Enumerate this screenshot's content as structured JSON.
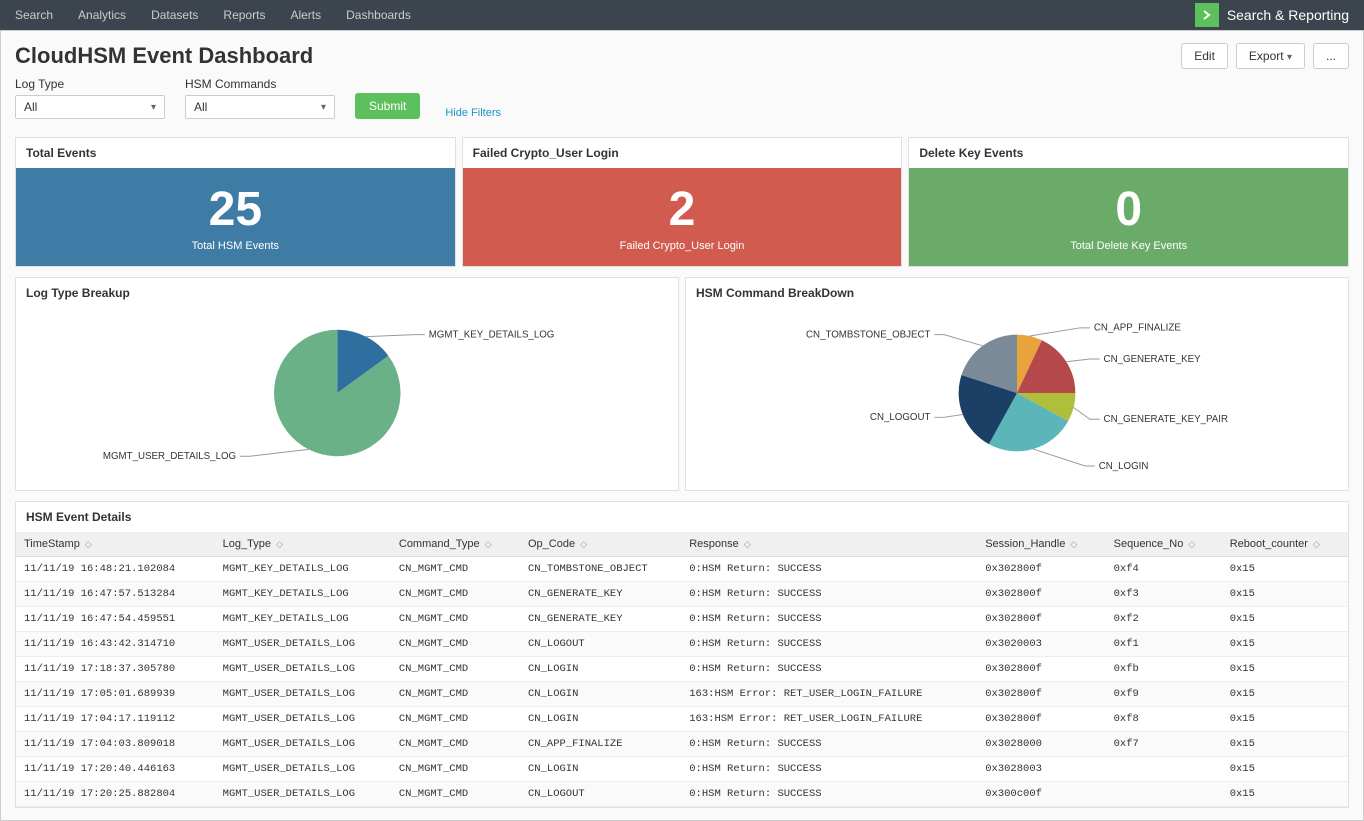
{
  "nav": {
    "items": [
      "Search",
      "Analytics",
      "Datasets",
      "Reports",
      "Alerts",
      "Dashboards"
    ],
    "brand": "Search & Reporting"
  },
  "page": {
    "title": "CloudHSM Event Dashboard",
    "actions": {
      "edit": "Edit",
      "export": "Export",
      "more": "..."
    }
  },
  "filters": {
    "log_type": {
      "label": "Log Type",
      "value": "All"
    },
    "hsm_commands": {
      "label": "HSM Commands",
      "value": "All"
    },
    "submit": "Submit",
    "hide": "Hide Filters"
  },
  "summary_cards": [
    {
      "header": "Total Events",
      "value": "25",
      "subtitle": "Total HSM Events",
      "bg": "#3e7ca6"
    },
    {
      "header": "Failed Crypto_User Login",
      "value": "2",
      "subtitle": "Failed Crypto_User Login",
      "bg": "#d15b4f"
    },
    {
      "header": "Delete Key Events",
      "value": "0",
      "subtitle": "Total Delete Key Events",
      "bg": "#6aab6a"
    }
  ],
  "pie1": {
    "title": "Log Type Breakup",
    "slices": [
      {
        "label": "MGMT_KEY_DETAILS_LOG",
        "value": 15,
        "color": "#2f6f9f"
      },
      {
        "label": "MGMT_USER_DETAILS_LOG",
        "value": 85,
        "color": "#6ab187"
      }
    ]
  },
  "pie2": {
    "title": "HSM Command BreakDown",
    "slices": [
      {
        "label": "CN_APP_FINALIZE",
        "value": 7,
        "color": "#e8a33d"
      },
      {
        "label": "CN_GENERATE_KEY",
        "value": 18,
        "color": "#b4484a"
      },
      {
        "label": "CN_GENERATE_KEY_PAIR",
        "value": 8,
        "color": "#afbf3b"
      },
      {
        "label": "CN_LOGIN",
        "value": 25,
        "color": "#5bb5b9"
      },
      {
        "label": "CN_LOGOUT",
        "value": 22,
        "color": "#1c3f66"
      },
      {
        "label": "CN_TOMBSTONE_OBJECT",
        "value": 20,
        "color": "#7b8a99"
      }
    ]
  },
  "table": {
    "title": "HSM Event Details",
    "columns": [
      "TimeStamp",
      "Log_Type",
      "Command_Type",
      "Op_Code",
      "Response",
      "Session_Handle",
      "Sequence_No",
      "Reboot_counter"
    ],
    "rows": [
      [
        "11/11/19 16:48:21.102084",
        "MGMT_KEY_DETAILS_LOG",
        "CN_MGMT_CMD",
        "CN_TOMBSTONE_OBJECT",
        "0:HSM Return: SUCCESS",
        "0x302800f",
        "0xf4",
        "0x15"
      ],
      [
        "11/11/19 16:47:57.513284",
        "MGMT_KEY_DETAILS_LOG",
        "CN_MGMT_CMD",
        "CN_GENERATE_KEY",
        "0:HSM Return: SUCCESS",
        "0x302800f",
        "0xf3",
        "0x15"
      ],
      [
        "11/11/19 16:47:54.459551",
        "MGMT_KEY_DETAILS_LOG",
        "CN_MGMT_CMD",
        "CN_GENERATE_KEY",
        "0:HSM Return: SUCCESS",
        "0x302800f",
        "0xf2",
        "0x15"
      ],
      [
        "11/11/19 16:43:42.314710",
        "MGMT_USER_DETAILS_LOG",
        "CN_MGMT_CMD",
        "CN_LOGOUT",
        "0:HSM Return: SUCCESS",
        "0x3020003",
        "0xf1",
        "0x15"
      ],
      [
        "11/11/19 17:18:37.305780",
        "MGMT_USER_DETAILS_LOG",
        "CN_MGMT_CMD",
        "CN_LOGIN",
        "0:HSM Return: SUCCESS",
        "0x302800f",
        "0xfb",
        "0x15"
      ],
      [
        "11/11/19 17:05:01.689939",
        "MGMT_USER_DETAILS_LOG",
        "CN_MGMT_CMD",
        "CN_LOGIN",
        "163:HSM Error: RET_USER_LOGIN_FAILURE",
        "0x302800f",
        "0xf9",
        "0x15"
      ],
      [
        "11/11/19 17:04:17.119112",
        "MGMT_USER_DETAILS_LOG",
        "CN_MGMT_CMD",
        "CN_LOGIN",
        "163:HSM Error: RET_USER_LOGIN_FAILURE",
        "0x302800f",
        "0xf8",
        "0x15"
      ],
      [
        "11/11/19 17:04:03.809018",
        "MGMT_USER_DETAILS_LOG",
        "CN_MGMT_CMD",
        "CN_APP_FINALIZE",
        "0:HSM Return: SUCCESS",
        "0x3028000",
        "0xf7",
        "0x15"
      ],
      [
        "11/11/19 17:20:40.446163",
        "MGMT_USER_DETAILS_LOG",
        "CN_MGMT_CMD",
        "CN_LOGIN",
        "0:HSM Return: SUCCESS",
        "0x3028003",
        "",
        "0x15"
      ],
      [
        "11/11/19 17:20:25.882804",
        "MGMT_USER_DETAILS_LOG",
        "CN_MGMT_CMD",
        "CN_LOGOUT",
        "0:HSM Return: SUCCESS",
        "0x300c00f",
        "",
        "0x15"
      ]
    ]
  }
}
